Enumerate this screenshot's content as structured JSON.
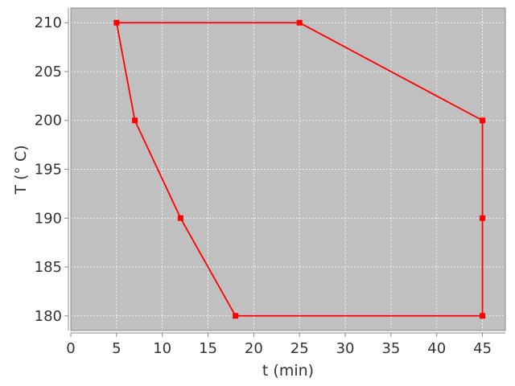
{
  "chart_data": {
    "type": "line",
    "title": "",
    "xlabel": "t (min)",
    "ylabel": "T (° C)",
    "xlim": [
      0,
      47.5
    ],
    "ylim": [
      178.5,
      211.5
    ],
    "xticks": [
      0,
      5,
      10,
      15,
      20,
      25,
      30,
      35,
      40,
      45
    ],
    "yticks": [
      180,
      185,
      190,
      195,
      200,
      205,
      210
    ],
    "grid": true,
    "legend": "none",
    "colors": {
      "plot_background": "#c0c0c0",
      "grid": "#ffffff",
      "series": "#ff0000"
    },
    "series": [
      {
        "marker": "square",
        "closed": true,
        "x": [
          5,
          25,
          45,
          45,
          45,
          18,
          12,
          7,
          5
        ],
        "y": [
          210,
          210,
          200,
          190,
          180,
          180,
          190,
          200,
          210
        ]
      }
    ]
  }
}
